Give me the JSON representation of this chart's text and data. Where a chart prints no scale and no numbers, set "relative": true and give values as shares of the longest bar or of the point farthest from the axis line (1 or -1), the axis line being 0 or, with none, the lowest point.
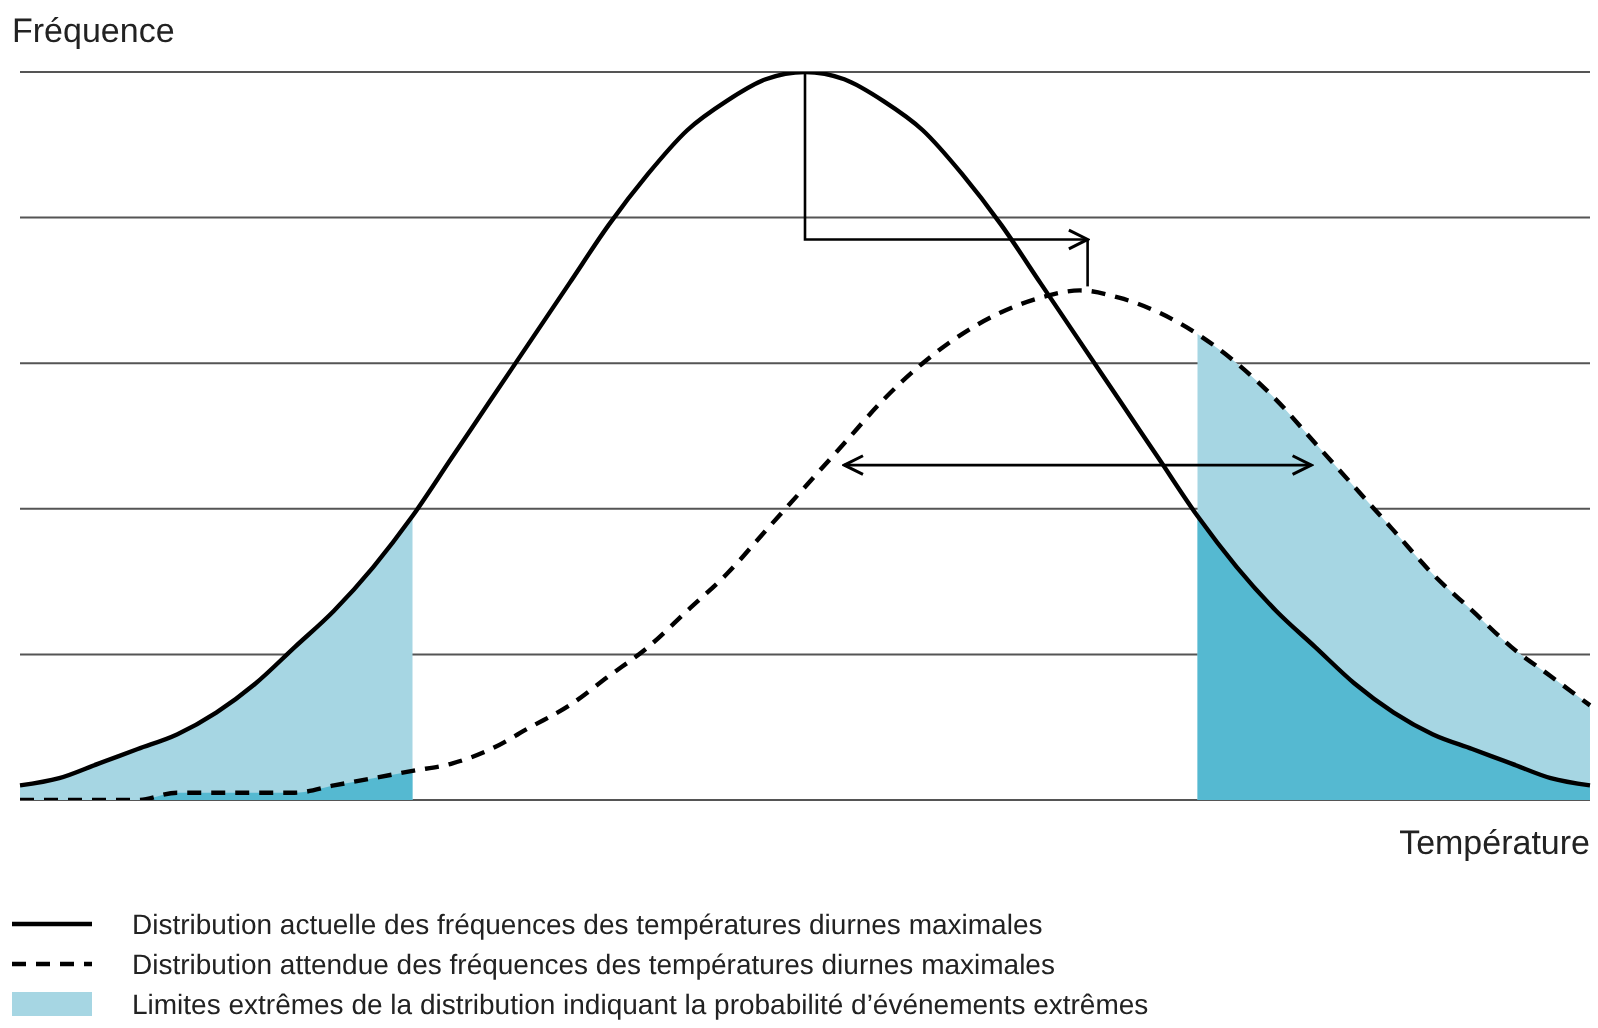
{
  "chart_data": {
    "type": "line",
    "relative": true,
    "xlabel": "Température",
    "ylabel": "Fréquence",
    "grid": "y",
    "legend": "bottom",
    "categories": [
      null,
      null,
      null,
      null,
      null,
      null,
      null,
      null,
      null,
      null,
      null,
      null,
      null,
      null,
      null,
      null,
      null,
      null,
      null,
      null,
      null,
      null,
      null,
      null,
      null,
      null,
      null,
      null,
      null,
      null,
      null,
      null,
      null,
      null,
      null,
      null,
      null,
      null,
      null,
      null,
      null
    ],
    "series": [
      {
        "type": "area",
        "name": "Limites extrêmes de la distribution indiquant la probabilité d’événements extrêmes",
        "color": "#a6d6e3",
        "values": [
          0.02,
          0.03,
          0.05,
          0.07,
          0.09,
          0.12,
          0.16,
          0.21,
          0.26,
          0.32,
          0.39,
          null,
          null,
          null,
          null,
          null,
          null,
          null,
          null,
          null,
          null,
          null,
          null,
          null,
          null,
          null,
          null,
          null,
          null,
          null,
          0.64,
          0.6,
          0.55,
          0.49,
          0.43,
          0.37,
          0.31,
          0.26,
          0.21,
          0.17,
          0.13
        ]
      },
      {
        "type": "area",
        "color": "#55b9d1",
        "values": [
          0,
          0,
          0,
          0,
          0.01,
          0.01,
          0.01,
          0.01,
          0.02,
          0.03,
          0.04,
          null,
          null,
          null,
          null,
          null,
          null,
          null,
          null,
          null,
          null,
          null,
          null,
          null,
          null,
          null,
          null,
          null,
          null,
          null,
          0.39,
          0.32,
          0.26,
          0.21,
          0.16,
          0.12,
          0.09,
          0.07,
          0.05,
          0.03,
          0.02
        ]
      },
      {
        "line_style": "solid",
        "name": "Distribution actuelle des fréquences des températures diurnes maximales",
        "color": "#000000",
        "values": [
          0.02,
          0.03,
          0.05,
          0.07,
          0.09,
          0.12,
          0.16,
          0.21,
          0.26,
          0.32,
          0.39,
          0.47,
          0.55,
          0.63,
          0.71,
          0.79,
          0.86,
          0.92,
          0.96,
          0.99,
          1,
          0.99,
          0.96,
          0.92,
          0.86,
          0.79,
          0.71,
          0.63,
          0.55,
          0.47,
          0.39,
          0.32,
          0.26,
          0.21,
          0.16,
          0.12,
          0.09,
          0.07,
          0.05,
          0.03,
          0.02
        ]
      },
      {
        "line_style": "dashed",
        "name": "Distribution attendue des fréquences des températures diurnes maximales",
        "color": "#000000",
        "values": [
          0,
          0,
          0,
          0,
          0.01,
          0.01,
          0.01,
          0.01,
          0.02,
          0.03,
          0.04,
          0.05,
          0.07,
          0.1,
          0.13,
          0.17,
          0.21,
          0.26,
          0.31,
          0.37,
          0.43,
          0.49,
          0.55,
          0.6,
          0.64,
          0.67,
          0.69,
          0.7,
          0.69,
          0.67,
          0.64,
          0.6,
          0.55,
          0.49,
          0.43,
          0.37,
          0.31,
          0.26,
          0.21,
          0.17,
          0.13
        ]
      }
    ]
  }
}
